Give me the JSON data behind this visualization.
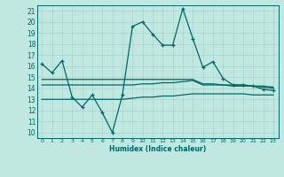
{
  "title": "",
  "xlabel": "Humidex (Indice chaleur)",
  "ylabel": "",
  "bg_color": "#c0e8e0",
  "line_color": "#006666",
  "grid_color": "#a8d4cc",
  "xlim": [
    -0.5,
    23.5
  ],
  "ylim": [
    9.5,
    21.5
  ],
  "xticks": [
    0,
    1,
    2,
    3,
    4,
    5,
    6,
    7,
    8,
    9,
    10,
    11,
    12,
    13,
    14,
    15,
    16,
    17,
    18,
    19,
    20,
    21,
    22,
    23
  ],
  "yticks": [
    10,
    11,
    12,
    13,
    14,
    15,
    16,
    17,
    18,
    19,
    20,
    21
  ],
  "main_x": [
    0,
    1,
    2,
    3,
    4,
    5,
    6,
    7,
    8,
    9,
    10,
    11,
    12,
    13,
    14,
    15,
    16,
    17,
    18,
    19,
    20,
    21,
    22,
    23
  ],
  "main_y": [
    16.2,
    15.4,
    16.5,
    13.2,
    12.3,
    13.4,
    11.8,
    10.0,
    13.4,
    19.6,
    20.0,
    18.9,
    17.9,
    17.9,
    21.2,
    18.5,
    15.9,
    16.4,
    14.9,
    14.3,
    14.3,
    14.2,
    13.9,
    13.8
  ],
  "flat1_x": [
    0,
    1,
    2,
    3,
    4,
    5,
    6,
    7,
    8,
    9,
    10,
    11,
    12,
    13,
    14,
    15,
    16,
    17,
    18,
    19,
    20,
    21,
    22,
    23
  ],
  "flat1_y": [
    14.3,
    14.3,
    14.3,
    14.3,
    14.3,
    14.3,
    14.3,
    14.3,
    14.3,
    14.3,
    14.4,
    14.4,
    14.5,
    14.5,
    14.6,
    14.7,
    14.3,
    14.3,
    14.3,
    14.3,
    14.3,
    14.2,
    14.1,
    14.0
  ],
  "flat2_x": [
    0,
    1,
    2,
    3,
    4,
    5,
    6,
    7,
    8,
    9,
    10,
    11,
    12,
    13,
    14,
    15,
    16,
    17,
    18,
    19,
    20,
    21,
    22,
    23
  ],
  "flat2_y": [
    13.0,
    13.0,
    13.0,
    13.0,
    13.0,
    13.0,
    13.0,
    13.0,
    13.0,
    13.1,
    13.2,
    13.2,
    13.3,
    13.3,
    13.4,
    13.5,
    13.5,
    13.5,
    13.5,
    13.5,
    13.5,
    13.4,
    13.4,
    13.4
  ],
  "flat3_x": [
    0,
    1,
    2,
    3,
    4,
    5,
    6,
    7,
    8,
    9,
    10,
    11,
    12,
    13,
    14,
    15,
    16,
    17,
    18,
    19,
    20,
    21,
    22,
    23
  ],
  "flat3_y": [
    14.8,
    14.8,
    14.8,
    14.8,
    14.8,
    14.8,
    14.8,
    14.8,
    14.8,
    14.8,
    14.8,
    14.8,
    14.8,
    14.8,
    14.8,
    14.8,
    14.4,
    14.4,
    14.3,
    14.2,
    14.2,
    14.2,
    14.2,
    14.1
  ]
}
